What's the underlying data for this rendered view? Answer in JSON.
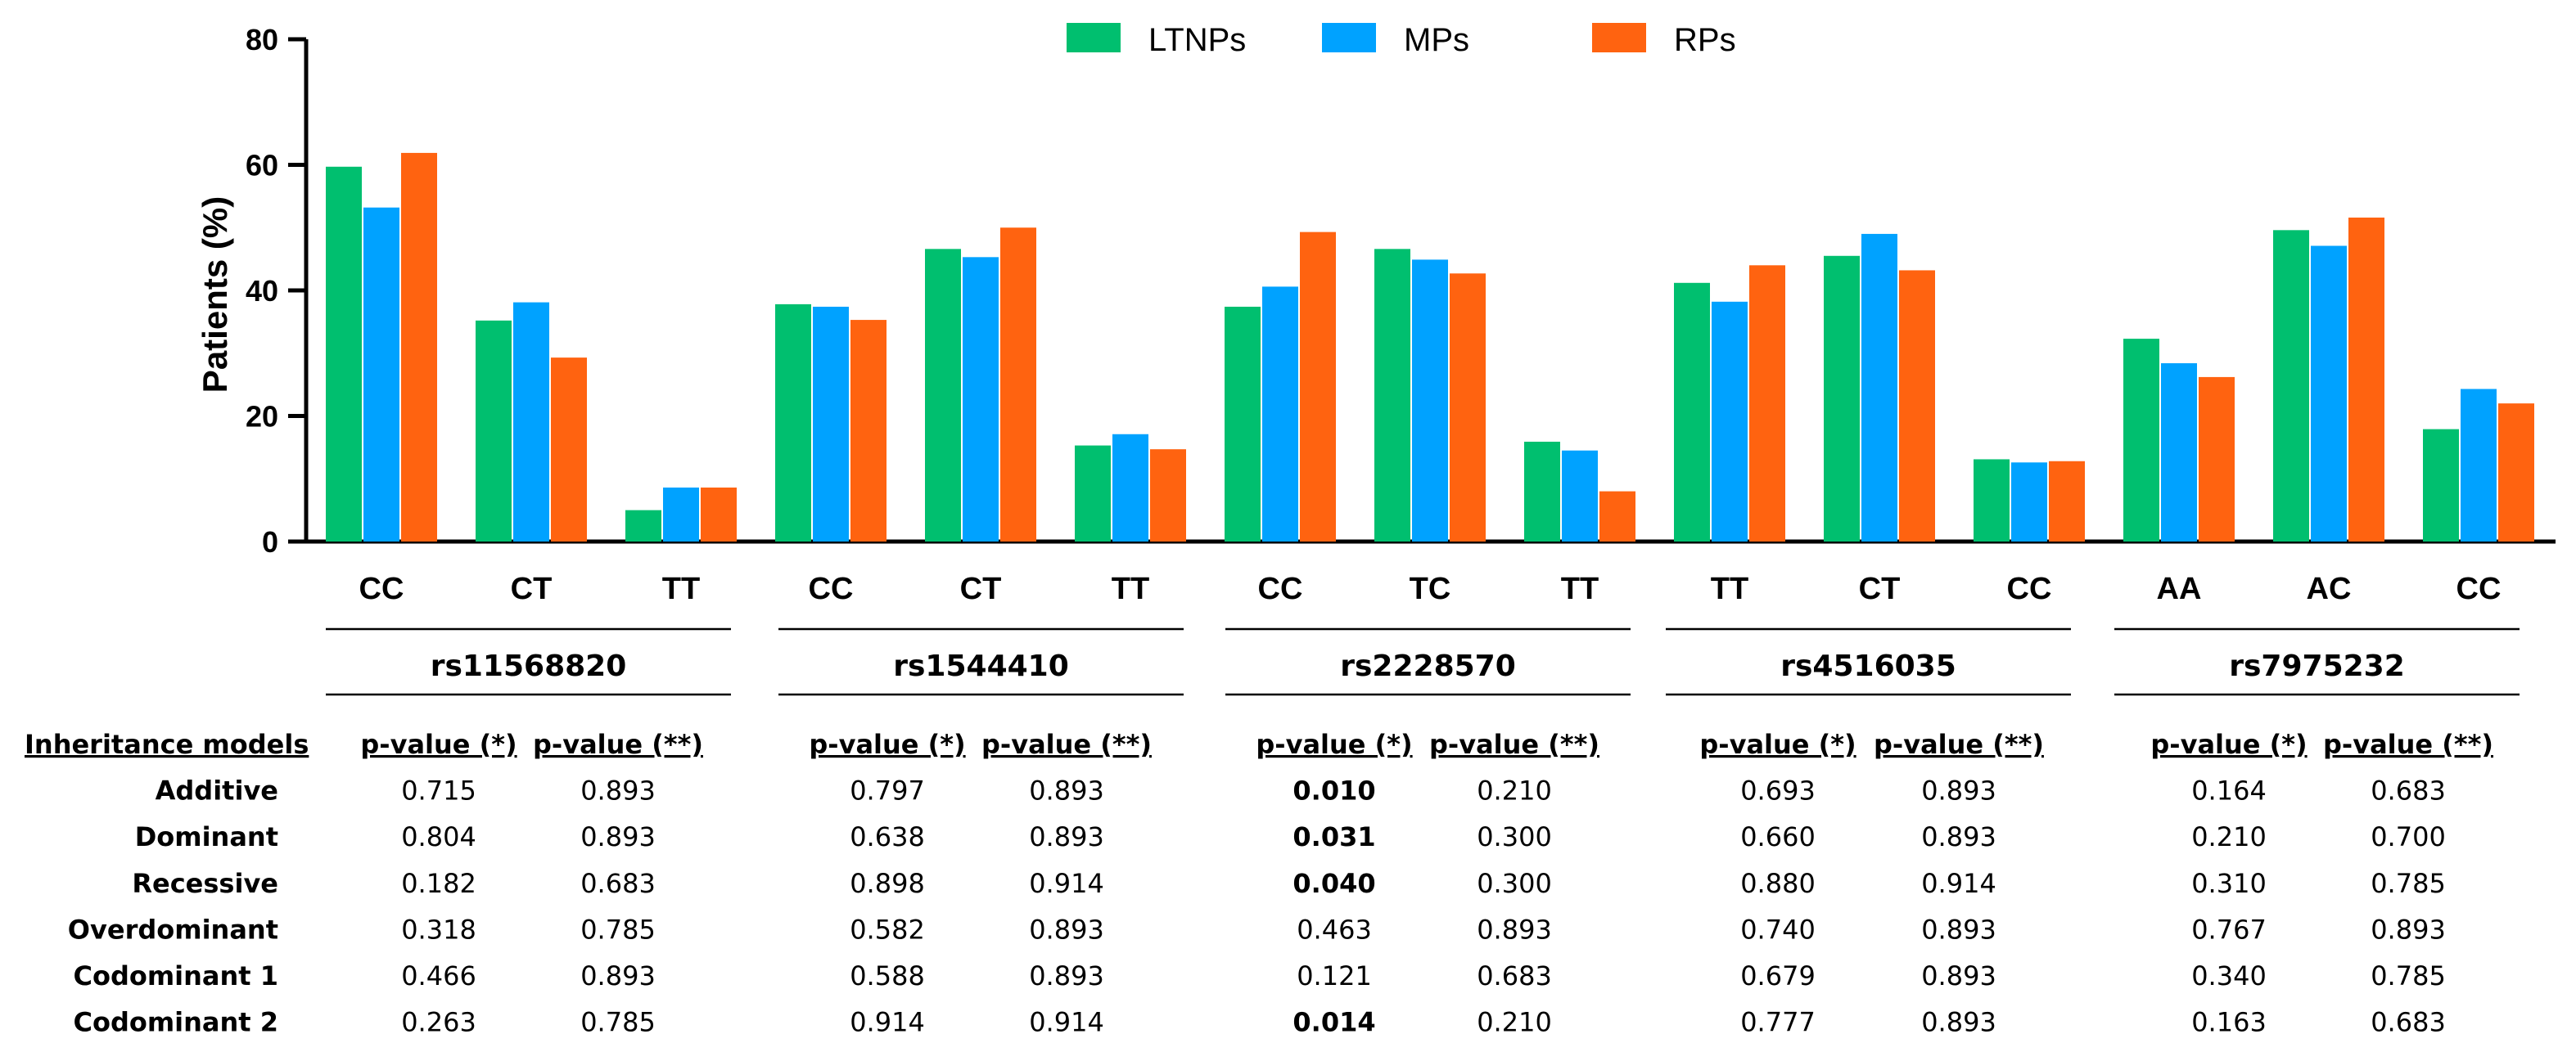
{
  "chart_data": {
    "type": "bar",
    "ylabel": "Patients (%)",
    "ylim": [
      0,
      80
    ],
    "yticks": [
      "0",
      "20",
      "40",
      "60",
      "80"
    ],
    "legend_position": "top-center",
    "series": [
      {
        "name": "LTNPs",
        "color": "#00BF6F",
        "values": [
          59.7,
          35.2,
          5.0,
          37.8,
          46.6,
          15.3,
          37.4,
          46.6,
          15.9,
          41.2,
          45.5,
          13.1,
          32.3,
          49.6,
          17.9
        ]
      },
      {
        "name": "MPs",
        "color": "#00A2FF",
        "values": [
          53.2,
          38.1,
          8.6,
          37.4,
          45.3,
          17.1,
          40.6,
          44.9,
          14.5,
          38.2,
          49.0,
          12.6,
          28.4,
          47.1,
          24.3
        ]
      },
      {
        "name": "RPs",
        "color": "#FF6310",
        "values": [
          61.9,
          29.3,
          8.6,
          35.3,
          50.0,
          14.7,
          49.3,
          42.7,
          8.0,
          44.0,
          43.2,
          12.8,
          26.2,
          51.6,
          22.0
        ]
      }
    ],
    "groups": [
      {
        "snp": "rs11568820",
        "genotypes": [
          "CC",
          "CT",
          "TT"
        ]
      },
      {
        "snp": "rs1544410",
        "genotypes": [
          "CC",
          "CT",
          "TT"
        ]
      },
      {
        "snp": "rs2228570",
        "genotypes": [
          "CC",
          "TC",
          "TT"
        ]
      },
      {
        "snp": "rs4516035",
        "genotypes": [
          "TT",
          "CT",
          "CC"
        ]
      },
      {
        "snp": "rs7975232",
        "genotypes": [
          "AA",
          "AC",
          "CC"
        ]
      }
    ]
  },
  "table": {
    "row_header": "Inheritance models",
    "col1_header": "p-value (*)",
    "col2_header": "p-value (**)",
    "rows": [
      "Additive",
      "Dominant",
      "Recessive",
      "Overdominant",
      "Codominant 1",
      "Codominant 2"
    ],
    "values": [
      {
        "snp": "rs11568820",
        "p1": [
          "0.715",
          "0.804",
          "0.182",
          "0.318",
          "0.466",
          "0.263"
        ],
        "p2": [
          "0.893",
          "0.893",
          "0.683",
          "0.785",
          "0.893",
          "0.785"
        ],
        "bold": [
          false,
          false,
          false,
          false,
          false,
          false
        ]
      },
      {
        "snp": "rs1544410",
        "p1": [
          "0.797",
          "0.638",
          "0.898",
          "0.582",
          "0.588",
          "0.914"
        ],
        "p2": [
          "0.893",
          "0.893",
          "0.914",
          "0.893",
          "0.893",
          "0.914"
        ],
        "bold": [
          false,
          false,
          false,
          false,
          false,
          false
        ]
      },
      {
        "snp": "rs2228570",
        "p1": [
          "0.010",
          "0.031",
          "0.040",
          "0.463",
          "0.121",
          "0.014"
        ],
        "p2": [
          "0.210",
          "0.300",
          "0.300",
          "0.893",
          "0.683",
          "0.210"
        ],
        "bold": [
          true,
          true,
          true,
          false,
          false,
          true
        ]
      },
      {
        "snp": "rs4516035",
        "p1": [
          "0.693",
          "0.660",
          "0.880",
          "0.740",
          "0.679",
          "0.777"
        ],
        "p2": [
          "0.893",
          "0.893",
          "0.914",
          "0.893",
          "0.893",
          "0.893"
        ],
        "bold": [
          false,
          false,
          false,
          false,
          false,
          false
        ]
      },
      {
        "snp": "rs7975232",
        "p1": [
          "0.164",
          "0.210",
          "0.310",
          "0.767",
          "0.340",
          "0.163"
        ],
        "p2": [
          "0.683",
          "0.700",
          "0.785",
          "0.893",
          "0.785",
          "0.683"
        ],
        "bold": [
          false,
          false,
          false,
          false,
          false,
          false
        ]
      }
    ]
  }
}
